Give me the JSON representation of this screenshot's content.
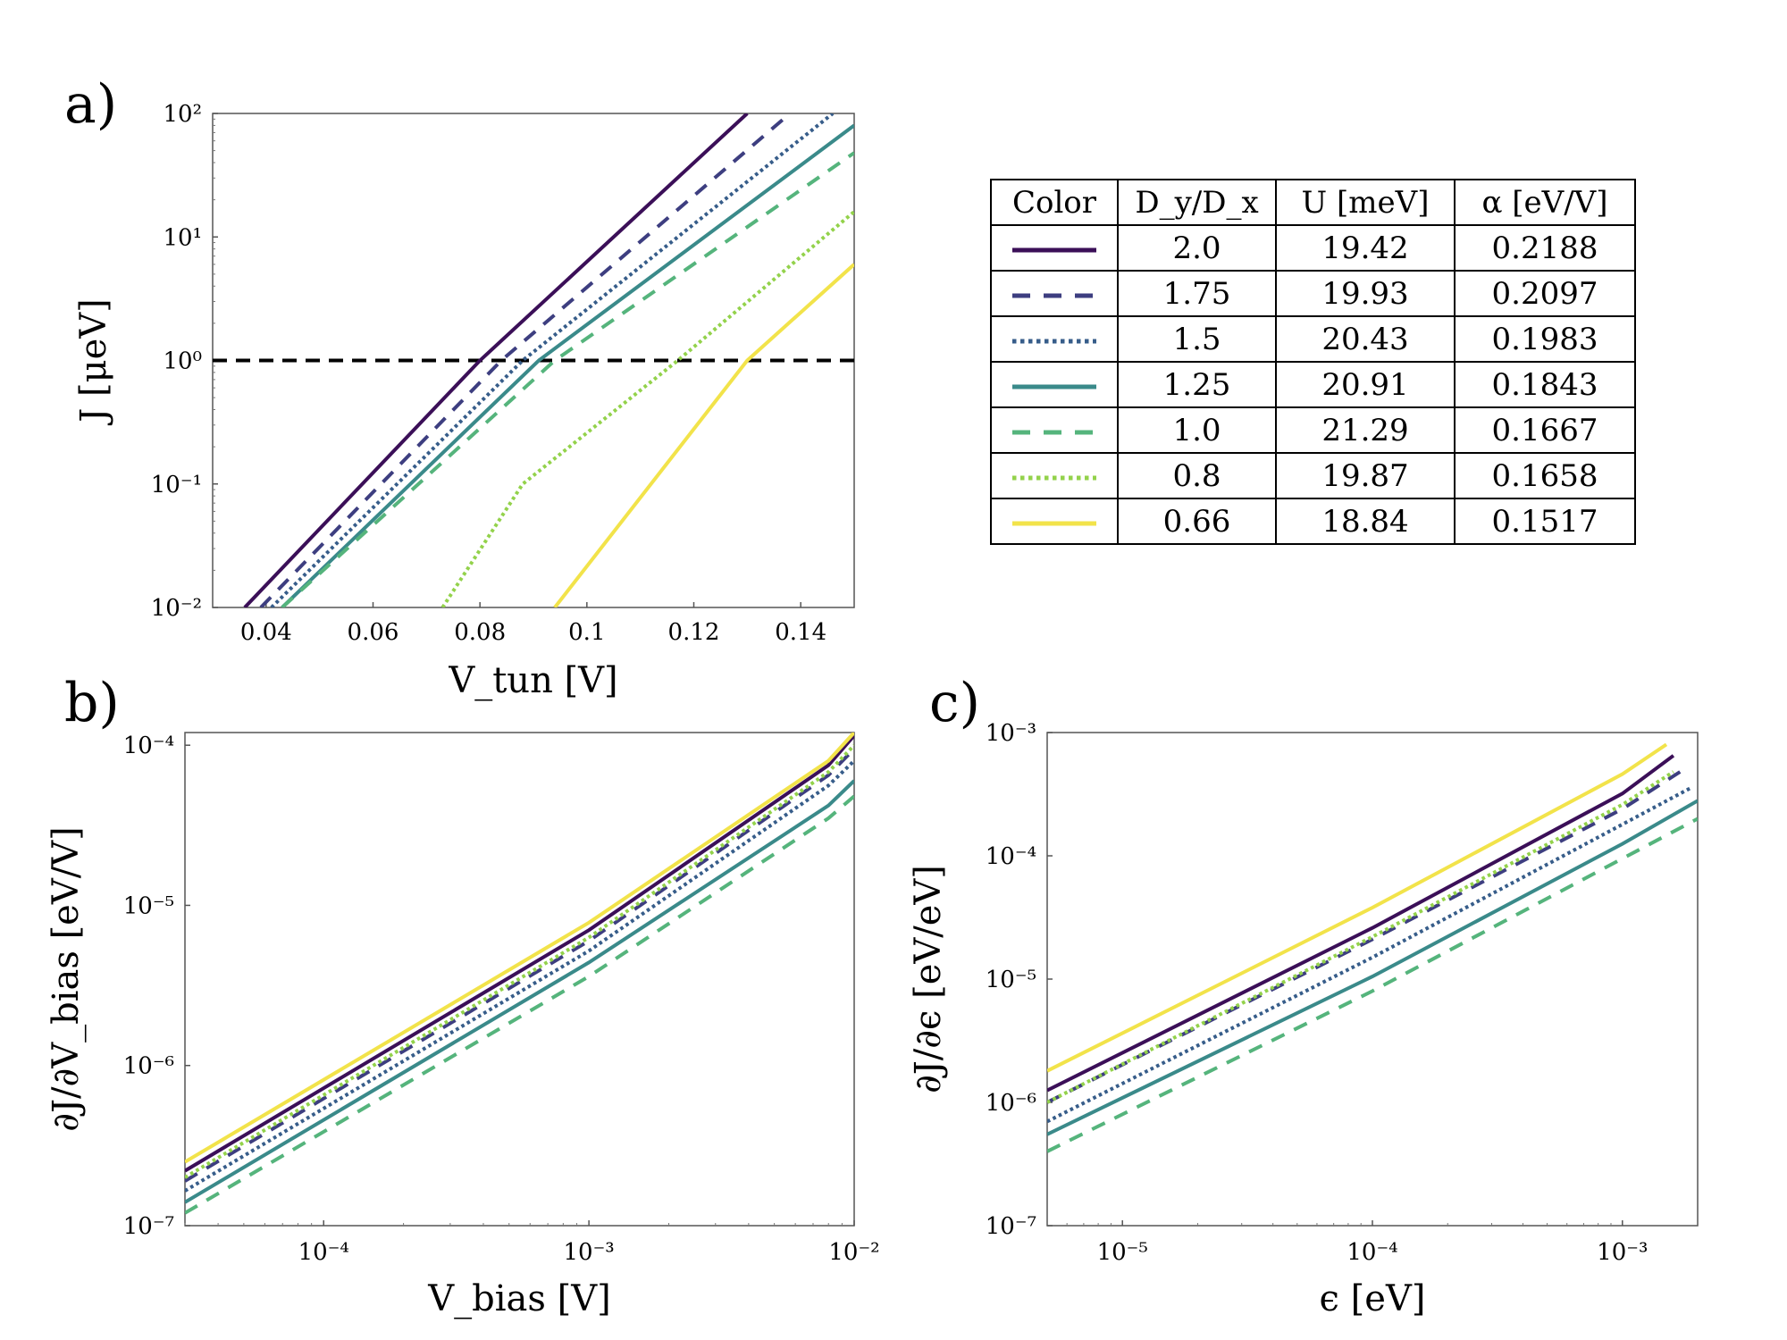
{
  "panels": {
    "a": {
      "letter": "a)",
      "xlabel": "V_tun [V]",
      "ylabel": "J [μeV]",
      "xticks": [
        "0.04",
        "0.06",
        "0.08",
        "0.1",
        "0.12",
        "0.14"
      ],
      "yticks": [
        "10⁻²",
        "10⁻¹",
        "10⁰",
        "10¹",
        "10²"
      ]
    },
    "b": {
      "letter": "b)",
      "xlabel": "V_bias [V]",
      "ylabel": "∂J/∂V_bias [eV/V]",
      "xticks": [
        "10⁻⁴",
        "10⁻³",
        "10⁻²"
      ],
      "yticks": [
        "10⁻⁷",
        "10⁻⁶",
        "10⁻⁵",
        "10⁻⁴"
      ]
    },
    "c": {
      "letter": "c)",
      "xlabel": "ϵ [eV]",
      "ylabel": "∂J/∂ϵ [eV/eV]",
      "xticks": [
        "10⁻⁵",
        "10⁻⁴",
        "10⁻³"
      ],
      "yticks": [
        "10⁻⁷",
        "10⁻⁶",
        "10⁻⁵",
        "10⁻⁴",
        "10⁻³"
      ]
    }
  },
  "table": {
    "headers": [
      "Color",
      "D_y/D_x",
      "U [meV]",
      "α [eV/V]"
    ],
    "rows": [
      {
        "ratio": "2.0",
        "u": "19.42",
        "alpha": "0.2188"
      },
      {
        "ratio": "1.75",
        "u": "19.93",
        "alpha": "0.2097"
      },
      {
        "ratio": "1.5",
        "u": "20.43",
        "alpha": "0.1983"
      },
      {
        "ratio": "1.25",
        "u": "20.91",
        "alpha": "0.1843"
      },
      {
        "ratio": "1.0",
        "u": "21.29",
        "alpha": "0.1667"
      },
      {
        "ratio": "0.8",
        "u": "19.87",
        "alpha": "0.1658"
      },
      {
        "ratio": "0.66",
        "u": "18.84",
        "alpha": "0.1517"
      }
    ]
  },
  "styles": [
    {
      "color": "#3b0f58",
      "dash": "solid"
    },
    {
      "color": "#3d3e80",
      "dash": "dash"
    },
    {
      "color": "#375d8a",
      "dash": "dot"
    },
    {
      "color": "#3a8a8a",
      "dash": "solid"
    },
    {
      "color": "#55b47c",
      "dash": "dash"
    },
    {
      "color": "#93d24b",
      "dash": "dot"
    },
    {
      "color": "#f2e34a",
      "dash": "solid"
    }
  ],
  "chart_data": [
    {
      "id": "a",
      "type": "line",
      "xscale": "linear",
      "yscale": "log",
      "title": "",
      "xlabel": "V_tun [V]",
      "ylabel": "J [μeV]",
      "xlim": [
        0.03,
        0.15
      ],
      "ylim": [
        0.01,
        100
      ],
      "reference_line": {
        "y": 1,
        "style": "dashed",
        "color": "#000000"
      },
      "series": [
        {
          "name": "2.0",
          "points": [
            [
              0.036,
              0.01
            ],
            [
              0.08,
              1
            ],
            [
              0.13,
              100
            ]
          ]
        },
        {
          "name": "1.75",
          "points": [
            [
              0.039,
              0.01
            ],
            [
              0.084,
              1
            ],
            [
              0.138,
              100
            ]
          ]
        },
        {
          "name": "1.5",
          "points": [
            [
              0.041,
              0.01
            ],
            [
              0.088,
              1
            ],
            [
              0.146,
              100
            ]
          ]
        },
        {
          "name": "1.25",
          "points": [
            [
              0.043,
              0.01
            ],
            [
              0.091,
              1
            ],
            [
              0.15,
              80
            ]
          ]
        },
        {
          "name": "1.0",
          "points": [
            [
              0.043,
              0.01
            ],
            [
              0.094,
              1
            ],
            [
              0.15,
              48
            ]
          ]
        },
        {
          "name": "0.8",
          "points": [
            [
              0.073,
              0.01
            ],
            [
              0.088,
              0.1
            ],
            [
              0.117,
              1
            ],
            [
              0.15,
              16
            ]
          ]
        },
        {
          "name": "0.66",
          "points": [
            [
              0.094,
              0.01
            ],
            [
              0.13,
              1
            ],
            [
              0.15,
              6
            ]
          ]
        }
      ]
    },
    {
      "id": "b",
      "type": "line",
      "xscale": "log",
      "yscale": "log",
      "title": "",
      "xlabel": "V_bias [V]",
      "ylabel": "∂J/∂V_bias [eV/V]",
      "xlim": [
        3e-05,
        0.01
      ],
      "ylim": [
        1e-07,
        0.00012
      ],
      "series": [
        {
          "name": "2.0",
          "points": [
            [
              3e-05,
              2.2e-07
            ],
            [
              0.001,
              7e-06
            ],
            [
              0.008,
              7.5e-05
            ],
            [
              0.01,
              0.000115
            ]
          ]
        },
        {
          "name": "1.75",
          "points": [
            [
              3e-05,
              1.9e-07
            ],
            [
              0.001,
              6e-06
            ],
            [
              0.008,
              6.5e-05
            ],
            [
              0.01,
              9.5e-05
            ]
          ]
        },
        {
          "name": "1.5",
          "points": [
            [
              3e-05,
              1.65e-07
            ],
            [
              0.001,
              5.2e-06
            ],
            [
              0.008,
              5.6e-05
            ],
            [
              0.01,
              8e-05
            ]
          ]
        },
        {
          "name": "1.25",
          "points": [
            [
              3e-05,
              1.4e-07
            ],
            [
              0.001,
              4.4e-06
            ],
            [
              0.008,
              4.2e-05
            ],
            [
              0.01,
              6e-05
            ]
          ]
        },
        {
          "name": "1.0",
          "points": [
            [
              3e-05,
              1.2e-07
            ],
            [
              0.001,
              3.6e-06
            ],
            [
              0.008,
              3.5e-05
            ],
            [
              0.01,
              4.8e-05
            ]
          ]
        },
        {
          "name": "0.8",
          "points": [
            [
              3e-05,
              2e-07
            ],
            [
              0.001,
              6.3e-06
            ],
            [
              0.008,
              6.8e-05
            ],
            [
              0.01,
              0.0001
            ]
          ]
        },
        {
          "name": "0.66",
          "points": [
            [
              3e-05,
              2.5e-07
            ],
            [
              0.001,
              7.8e-06
            ],
            [
              0.008,
              8e-05
            ],
            [
              0.01,
              0.00012
            ]
          ]
        }
      ]
    },
    {
      "id": "c",
      "type": "line",
      "xscale": "log",
      "yscale": "log",
      "title": "",
      "xlabel": "ϵ [eV]",
      "ylabel": "∂J/∂ϵ [eV/eV]",
      "xlim": [
        5e-06,
        0.002
      ],
      "ylim": [
        1e-07,
        0.001
      ],
      "series": [
        {
          "name": "2.0",
          "points": [
            [
              5e-06,
              1.25e-06
            ],
            [
              0.0001,
              2.6e-05
            ],
            [
              0.001,
              0.00032
            ],
            [
              0.0016,
              0.00065
            ]
          ]
        },
        {
          "name": "1.75",
          "points": [
            [
              5e-06,
              1e-06
            ],
            [
              0.0001,
              2.1e-05
            ],
            [
              0.001,
              0.00024
            ],
            [
              0.0017,
              0.00048
            ]
          ]
        },
        {
          "name": "1.5",
          "points": [
            [
              5e-06,
              7e-07
            ],
            [
              0.0001,
              1.5e-05
            ],
            [
              0.001,
              0.00018
            ],
            [
              0.0019,
              0.00036
            ]
          ]
        },
        {
          "name": "1.25",
          "points": [
            [
              5e-06,
              5.5e-07
            ],
            [
              0.0001,
              1.05e-05
            ],
            [
              0.001,
              0.000125
            ],
            [
              0.002,
              0.00028
            ]
          ]
        },
        {
          "name": "1.0",
          "points": [
            [
              5e-06,
              4e-07
            ],
            [
              0.0001,
              8e-06
            ],
            [
              0.001,
              9.5e-05
            ],
            [
              0.002,
              0.0002
            ]
          ]
        },
        {
          "name": "0.8",
          "points": [
            [
              5e-06,
              1e-06
            ],
            [
              0.0001,
              2.2e-05
            ],
            [
              0.001,
              0.00026
            ],
            [
              0.0016,
              0.00048
            ]
          ]
        },
        {
          "name": "0.66",
          "points": [
            [
              5e-06,
              1.8e-06
            ],
            [
              0.0001,
              3.8e-05
            ],
            [
              0.001,
              0.00046
            ],
            [
              0.0015,
              0.0008
            ]
          ]
        }
      ]
    }
  ]
}
